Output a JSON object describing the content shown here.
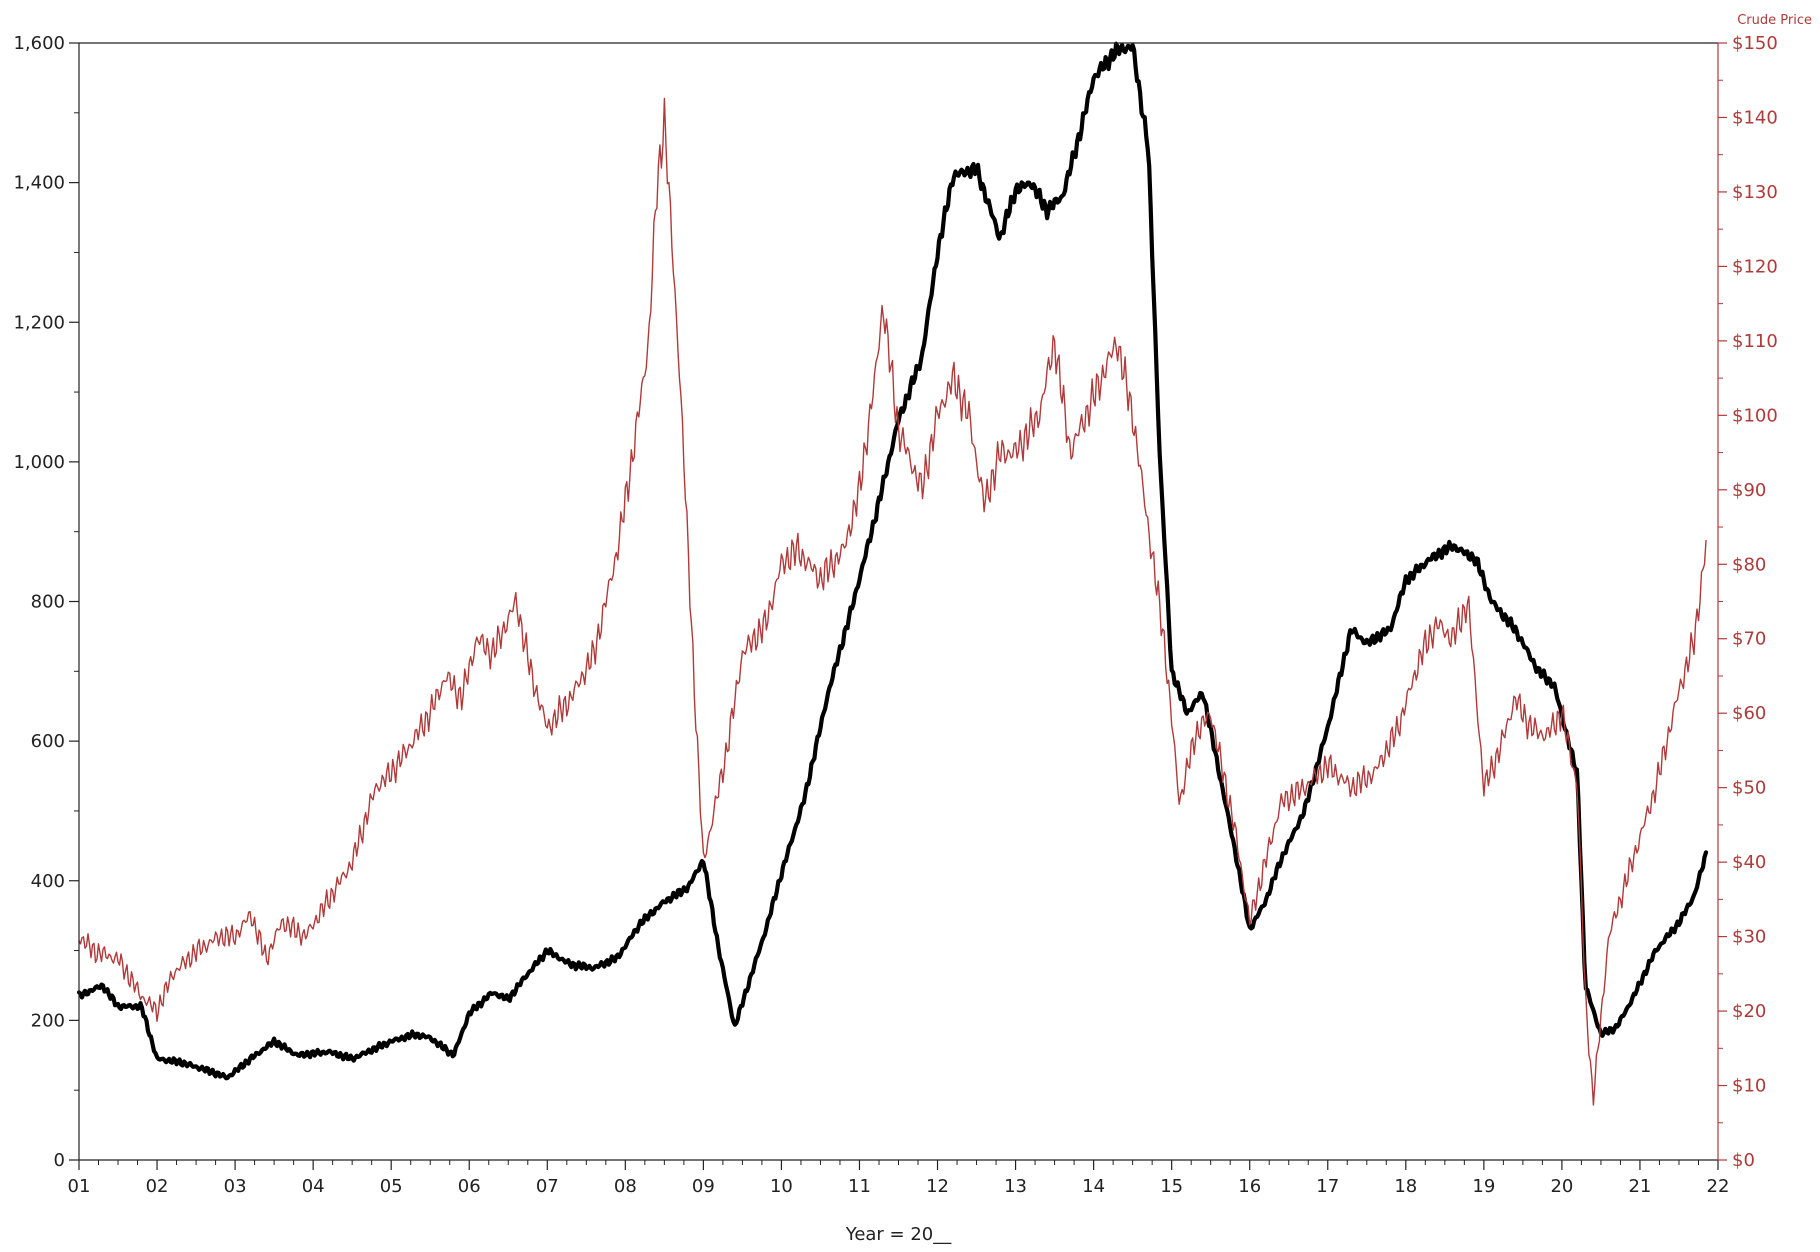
{
  "chart_data": {
    "type": "line",
    "xlabel": "Year = 20__",
    "y2label": "Crude Price",
    "x_tick_labels": [
      "01",
      "02",
      "03",
      "04",
      "05",
      "06",
      "07",
      "08",
      "09",
      "10",
      "11",
      "12",
      "13",
      "14",
      "15",
      "16",
      "17",
      "18",
      "19",
      "20",
      "21",
      "22"
    ],
    "x_ticks": [
      2001,
      2002,
      2003,
      2004,
      2005,
      2006,
      2007,
      2008,
      2009,
      2010,
      2011,
      2012,
      2013,
      2014,
      2015,
      2016,
      2017,
      2018,
      2019,
      2020,
      2021,
      2022
    ],
    "xlim": [
      2001,
      2022
    ],
    "ylim": [
      0,
      1600
    ],
    "y_tick_values": [
      0,
      200,
      400,
      600,
      800,
      1000,
      1200,
      1400,
      1600
    ],
    "y_tick_labels": [
      "0",
      "200",
      "400",
      "600",
      "800",
      "1,000",
      "1,200",
      "1,400",
      "1,600"
    ],
    "y2lim": [
      0,
      150
    ],
    "y2_tick_values": [
      0,
      10,
      20,
      30,
      40,
      50,
      60,
      70,
      80,
      90,
      100,
      110,
      120,
      130,
      140,
      150
    ],
    "y2_tick_labels": [
      "$0",
      "$10",
      "$20",
      "$30",
      "$40",
      "$50",
      "$60",
      "$70",
      "$80",
      "$90",
      "$100",
      "$110",
      "$120",
      "$130",
      "$140",
      "$150"
    ],
    "colors": {
      "primary": "#000000",
      "crude": "#b03a3a",
      "axis": "#222222"
    },
    "series": [
      {
        "axis": "left",
        "color": "#000000",
        "x": [
          2001.0,
          2001.3,
          2001.5,
          2001.8,
          2002.0,
          2002.3,
          2002.6,
          2002.9,
          2003.2,
          2003.5,
          2003.8,
          2004.2,
          2004.5,
          2004.8,
          2005.0,
          2005.3,
          2005.5,
          2005.8,
          2006.0,
          2006.3,
          2006.5,
          2006.7,
          2007.0,
          2007.3,
          2007.6,
          2007.9,
          2008.2,
          2008.5,
          2008.8,
          2009.0,
          2009.2,
          2009.4,
          2009.6,
          2009.8,
          2010.0,
          2010.3,
          2010.6,
          2010.9,
          2011.2,
          2011.5,
          2011.8,
          2012.0,
          2012.2,
          2012.5,
          2012.8,
          2013.0,
          2013.2,
          2013.4,
          2013.6,
          2013.8,
          2014.0,
          2014.3,
          2014.5,
          2014.7,
          2014.85,
          2015.0,
          2015.2,
          2015.4,
          2015.6,
          2015.8,
          2016.0,
          2016.2,
          2016.4,
          2016.7,
          2017.0,
          2017.3,
          2017.5,
          2017.8,
          2018.0,
          2018.3,
          2018.6,
          2018.9,
          2019.1,
          2019.4,
          2019.7,
          2019.9,
          2020.2,
          2020.3,
          2020.5,
          2020.7,
          2020.9,
          2021.2,
          2021.5,
          2021.7,
          2021.85
        ],
        "y": [
          235,
          250,
          220,
          220,
          145,
          140,
          130,
          118,
          145,
          170,
          150,
          155,
          145,
          160,
          170,
          180,
          175,
          150,
          210,
          240,
          230,
          260,
          300,
          280,
          275,
          290,
          340,
          370,
          390,
          430,
          300,
          190,
          260,
          330,
          410,
          520,
          670,
          790,
          920,
          1060,
          1150,
          1300,
          1410,
          1420,
          1320,
          1390,
          1400,
          1360,
          1380,
          1460,
          1550,
          1590,
          1595,
          1450,
          1000,
          700,
          640,
          670,
          560,
          450,
          330,
          370,
          430,
          500,
          620,
          760,
          740,
          760,
          830,
          860,
          880,
          860,
          800,
          760,
          700,
          680,
          550,
          250,
          180,
          190,
          230,
          300,
          340,
          380,
          440
        ]
      },
      {
        "axis": "right",
        "color": "#b03a3a",
        "x": [
          2001.0,
          2001.2,
          2001.5,
          2001.8,
          2002.0,
          2002.2,
          2002.5,
          2002.8,
          2003.0,
          2003.2,
          2003.4,
          2003.6,
          2003.9,
          2004.2,
          2004.5,
          2004.8,
          2005.0,
          2005.2,
          2005.5,
          2005.7,
          2005.9,
          2006.1,
          2006.3,
          2006.6,
          2006.8,
          2007.0,
          2007.3,
          2007.6,
          2007.9,
          2008.1,
          2008.3,
          2008.4,
          2008.5,
          2008.7,
          2008.9,
          2009.0,
          2009.1,
          2009.3,
          2009.5,
          2009.8,
          2010.0,
          2010.2,
          2010.5,
          2010.8,
          2011.0,
          2011.2,
          2011.3,
          2011.5,
          2011.8,
          2012.0,
          2012.2,
          2012.4,
          2012.6,
          2012.8,
          2013.0,
          2013.3,
          2013.5,
          2013.7,
          2013.9,
          2014.1,
          2014.3,
          2014.5,
          2014.7,
          2014.9,
          2015.1,
          2015.3,
          2015.5,
          2015.8,
          2016.0,
          2016.2,
          2016.4,
          2016.7,
          2017.0,
          2017.3,
          2017.6,
          2017.9,
          2018.2,
          2018.4,
          2018.6,
          2018.8,
          2019.0,
          2019.2,
          2019.4,
          2019.6,
          2019.8,
          2020.0,
          2020.2,
          2020.3,
          2020.4,
          2020.6,
          2020.9,
          2021.2,
          2021.5,
          2021.7,
          2021.85
        ],
        "y": [
          30,
          28,
          27,
          22,
          20,
          25,
          28,
          30,
          30,
          33,
          27,
          32,
          30,
          35,
          40,
          50,
          52,
          55,
          60,
          65,
          62,
          70,
          68,
          75,
          65,
          58,
          62,
          68,
          82,
          95,
          110,
          130,
          140,
          105,
          60,
          40,
          45,
          55,
          68,
          72,
          80,
          82,
          78,
          82,
          90,
          105,
          115,
          98,
          90,
          100,
          105,
          100,
          88,
          95,
          95,
          100,
          110,
          95,
          100,
          105,
          110,
          100,
          85,
          70,
          48,
          57,
          60,
          45,
          32,
          40,
          48,
          50,
          53,
          50,
          52,
          58,
          68,
          72,
          70,
          75,
          50,
          55,
          62,
          58,
          57,
          60,
          50,
          22,
          8,
          30,
          40,
          50,
          63,
          70,
          83
        ]
      }
    ]
  }
}
